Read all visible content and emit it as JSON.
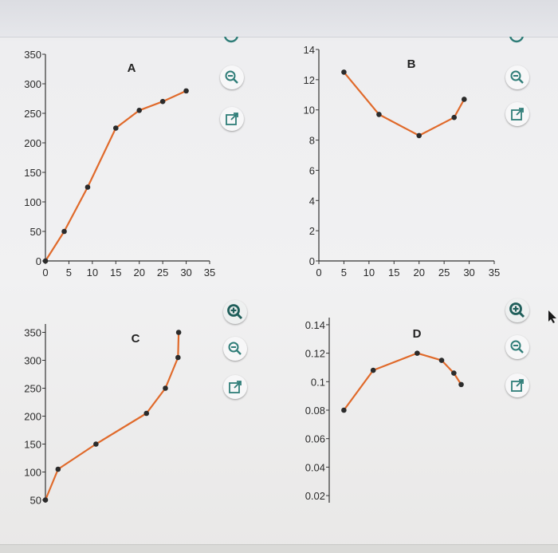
{
  "chart_data": [
    {
      "panel": "A",
      "type": "line",
      "title": "A",
      "x": [
        0,
        4,
        9,
        15,
        20,
        25,
        30
      ],
      "y": [
        0,
        50,
        125,
        225,
        255,
        270,
        288
      ],
      "xlim": [
        0,
        35
      ],
      "ylim": [
        0,
        350
      ],
      "xticks": [
        "0",
        "5",
        "10",
        "15",
        "20",
        "25",
        "30",
        "35"
      ],
      "yticks": [
        "0",
        "50",
        "100",
        "150",
        "200",
        "250",
        "300",
        "350"
      ],
      "xtick_values": [
        0,
        5,
        10,
        15,
        20,
        25,
        30,
        35
      ],
      "ytick_values": [
        0,
        50,
        100,
        150,
        200,
        250,
        300,
        350
      ],
      "line_color": "#e06a2b",
      "marker_color": "#2b2b2b"
    },
    {
      "panel": "B",
      "type": "line",
      "title": "B",
      "x": [
        5,
        12,
        20,
        27,
        29
      ],
      "y": [
        12.5,
        9.7,
        8.3,
        9.5,
        10.7
      ],
      "xlim": [
        0,
        35
      ],
      "ylim": [
        0,
        14
      ],
      "xticks": [
        "0",
        "5",
        "10",
        "15",
        "20",
        "25",
        "30",
        "35"
      ],
      "yticks": [
        "0",
        "2",
        "4",
        "6",
        "8",
        "10",
        "12",
        "14"
      ],
      "xtick_values": [
        0,
        5,
        10,
        15,
        20,
        25,
        30,
        35
      ],
      "ytick_values": [
        0,
        2,
        4,
        6,
        8,
        10,
        12,
        14
      ],
      "line_color": "#e06a2b",
      "marker_color": "#2b2b2b"
    },
    {
      "panel": "C",
      "type": "line",
      "title": "C",
      "x": [
        0,
        2,
        8,
        16,
        19,
        21,
        21.1
      ],
      "y": [
        50,
        105,
        150,
        205,
        250,
        305,
        350
      ],
      "xlim": [
        0,
        25
      ],
      "ylim": [
        45,
        365
      ],
      "yticks": [
        "50",
        "100",
        "150",
        "200",
        "250",
        "300",
        "350"
      ],
      "ytick_values": [
        50,
        100,
        150,
        200,
        250,
        300,
        350
      ],
      "line_color": "#e06a2b",
      "marker_color": "#2b2b2b"
    },
    {
      "panel": "D",
      "type": "line",
      "title": "D",
      "x": [
        0,
        1.2,
        3,
        4,
        4.5,
        4.8
      ],
      "y": [
        0.08,
        0.108,
        0.12,
        0.115,
        0.106,
        0.098
      ],
      "xlim": [
        -0.6,
        5.5
      ],
      "ylim": [
        0.015,
        0.145
      ],
      "yticks": [
        "0.02",
        "0.04",
        "0.06",
        "0.08",
        "0.1",
        "0.12",
        "0.14"
      ],
      "ytick_values": [
        0.02,
        0.04,
        0.06,
        0.08,
        0.1,
        0.12,
        0.14
      ],
      "line_color": "#e06a2b",
      "marker_color": "#2b2b2b"
    }
  ],
  "tools": {
    "icons": [
      "zoom-in-icon",
      "zoom-out-icon",
      "external-link-icon"
    ],
    "icon_color": "#2f7d78"
  }
}
